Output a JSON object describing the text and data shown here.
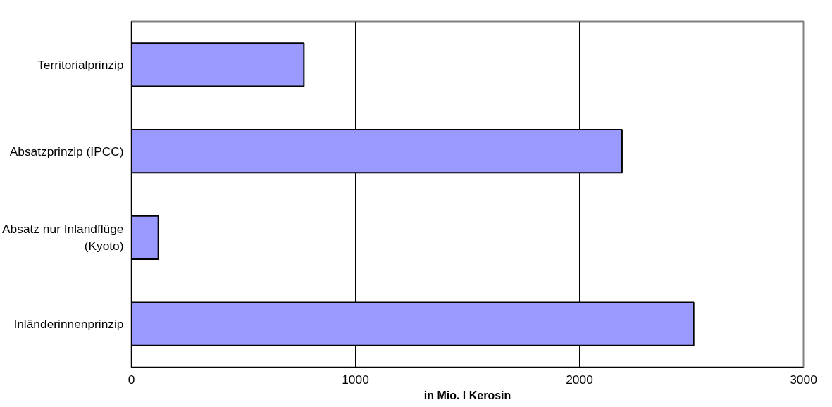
{
  "chart_data": {
    "type": "bar",
    "orientation": "horizontal",
    "xlabel": "in Mio. l Kerosin",
    "categories": [
      "Territorialprinzip",
      "Absatzprinzip (IPCC)",
      "Absatz nur Inlandflüge\n(Kyoto)",
      "Inländerinnenprinzip"
    ],
    "values": [
      770,
      2190,
      120,
      2510
    ],
    "color": "#9999ff",
    "xlim": [
      0,
      3000
    ],
    "xticks": [
      0,
      1000,
      2000,
      3000
    ],
    "grid": "x"
  }
}
